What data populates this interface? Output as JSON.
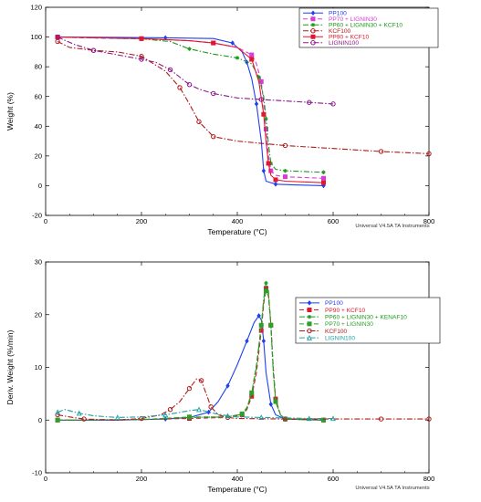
{
  "chart_data": [
    {
      "type": "line",
      "xlabel": "Temperature (°C)",
      "ylabel": "Weight (%)",
      "xlim": [
        0,
        800
      ],
      "ylim": [
        -20,
        120
      ],
      "xticks": [
        0,
        200,
        400,
        600,
        800
      ],
      "yticks": [
        -20,
        0,
        20,
        40,
        60,
        80,
        100,
        120
      ],
      "credit": "Universal V4.5A TA Instruments",
      "legend_position": "top-right",
      "series": [
        {
          "name": "PP100",
          "color": "#1f3ff0",
          "marker": "diamond",
          "dash": "solid",
          "x": [
            25,
            150,
            250,
            350,
            390,
            410,
            420,
            430,
            440,
            450,
            455,
            460,
            480,
            520,
            580
          ],
          "y": [
            100,
            99.8,
            99.5,
            99,
            96,
            90,
            83,
            72,
            55,
            30,
            10,
            3,
            1,
            0.5,
            0
          ]
        },
        {
          "name": "PP70 + LIGNIN30",
          "color": "#d93bd9",
          "marker": "square",
          "dash": "dash",
          "x": [
            25,
            100,
            200,
            300,
            350,
            400,
            430,
            440,
            450,
            455,
            460,
            465,
            470,
            480,
            500,
            580
          ],
          "y": [
            100,
            99.3,
            98.8,
            97.5,
            96,
            93,
            88,
            82,
            70,
            55,
            38,
            20,
            10,
            7,
            6,
            5
          ]
        },
        {
          "name": "PP60 + LIGNIN30 + KCF10",
          "color": "#1a9a1a",
          "marker": "asterisk",
          "dash": "dashdot",
          "x": [
            25,
            100,
            200,
            260,
            300,
            350,
            400,
            430,
            445,
            455,
            460,
            465,
            470,
            480,
            500,
            580
          ],
          "y": [
            100,
            99.5,
            98.8,
            97,
            92,
            88.5,
            86,
            82,
            73,
            60,
            45,
            28,
            15,
            11,
            10,
            9
          ]
        },
        {
          "name": "KCF100",
          "color": "#b01a1a",
          "marker": "circle",
          "dash": "dashdot",
          "x": [
            25,
            50,
            100,
            150,
            200,
            250,
            280,
            300,
            320,
            335,
            350,
            400,
            500,
            600,
            700,
            800
          ],
          "y": [
            97,
            93,
            91,
            90,
            87,
            77,
            66,
            55,
            43,
            38,
            33,
            30,
            27,
            25,
            23,
            21.5
          ]
        },
        {
          "name": "PP90 + KCF10",
          "color": "#e0182e",
          "marker": "square",
          "dash": "solid",
          "x": [
            25,
            100,
            200,
            300,
            350,
            400,
            430,
            445,
            455,
            460,
            465,
            470,
            480,
            500,
            580
          ],
          "y": [
            100,
            99.6,
            99,
            97.5,
            96,
            93,
            85,
            70,
            48,
            30,
            15,
            7,
            4,
            3,
            2
          ]
        },
        {
          "name": "LIGNIN100",
          "color": "#8a1a8a",
          "marker": "circle",
          "dash": "dashdot",
          "x": [
            25,
            60,
            100,
            150,
            200,
            230,
            260,
            280,
            300,
            320,
            350,
            400,
            450,
            500,
            550,
            600
          ],
          "y": [
            100,
            95,
            91,
            88,
            85,
            83,
            78,
            73,
            68,
            65,
            62,
            59,
            58,
            57,
            56,
            55
          ]
        }
      ]
    },
    {
      "type": "line",
      "xlabel": "Temperature (°C)",
      "ylabel": "Deriv. Weight (%/min)",
      "xlim": [
        0,
        800
      ],
      "ylim": [
        -10,
        30
      ],
      "xticks": [
        0,
        200,
        400,
        600,
        800
      ],
      "yticks": [
        -10,
        0,
        10,
        20,
        30
      ],
      "credit": "Universal V4.5A TA Instruments",
      "legend_position": "center-right",
      "series": [
        {
          "name": "PP100",
          "color": "#1f3ff0",
          "marker": "diamond",
          "dash": "solid",
          "x": [
            25,
            150,
            250,
            300,
            340,
            360,
            380,
            400,
            420,
            435,
            445,
            450,
            455,
            460,
            470,
            480,
            500,
            580
          ],
          "y": [
            0,
            0,
            0.2,
            0.5,
            1.5,
            3.5,
            6.5,
            10.5,
            15,
            18.5,
            19.8,
            19,
            15,
            9,
            3,
            1,
            0.2,
            0
          ]
        },
        {
          "name": "PP90 + KCF10",
          "color": "#e0182e",
          "marker": "square",
          "dash": "dash",
          "x": [
            25,
            200,
            300,
            380,
            410,
            420,
            430,
            440,
            450,
            455,
            460,
            465,
            470,
            475,
            480,
            490,
            500,
            580
          ],
          "y": [
            0,
            0.1,
            0.3,
            0.5,
            1,
            2,
            4.5,
            9,
            17,
            22,
            25,
            24,
            18,
            10,
            4,
            1,
            0.2,
            0
          ]
        },
        {
          "name": "PP60 + LIGNIN30 + KENAF10",
          "color": "#1a9a1a",
          "marker": "asterisk",
          "dash": "dashdot",
          "x": [
            25,
            200,
            300,
            380,
            410,
            420,
            430,
            440,
            450,
            455,
            460,
            465,
            470,
            475,
            480,
            490,
            500,
            580
          ],
          "y": [
            0,
            0.1,
            0.5,
            0.6,
            1.1,
            2.2,
            5,
            10,
            18,
            23,
            26,
            24.5,
            18,
            9,
            3.5,
            1,
            0.2,
            0
          ]
        },
        {
          "name": "PP70 + LIGNIN30",
          "color": "#2aa02a",
          "marker": "square",
          "dash": "dash",
          "x": [
            25,
            200,
            300,
            380,
            410,
            420,
            430,
            440,
            450,
            455,
            460,
            465,
            470,
            475,
            480,
            490,
            500,
            580
          ],
          "y": [
            0,
            0.1,
            0.6,
            0.6,
            1.2,
            2.4,
            5.2,
            10.5,
            18,
            22.5,
            24.5,
            23.5,
            18,
            9.5,
            3.5,
            1,
            0.2,
            0
          ]
        },
        {
          "name": "KCF100",
          "color": "#b01a1a",
          "marker": "circle",
          "dash": "dashdot",
          "x": [
            25,
            50,
            80,
            150,
            200,
            240,
            260,
            280,
            300,
            315,
            325,
            335,
            345,
            360,
            380,
            400,
            500,
            600,
            700,
            800
          ],
          "y": [
            1,
            0.6,
            0.2,
            0,
            0.3,
            1,
            2,
            3.5,
            6,
            7.8,
            7.5,
            5,
            2.5,
            1,
            0.5,
            0.3,
            0.2,
            0.2,
            0.2,
            0.2
          ]
        },
        {
          "name": "LIGNIN100",
          "color": "#20a0a0",
          "marker": "triangle",
          "dash": "dashdot",
          "x": [
            25,
            40,
            70,
            100,
            150,
            200,
            250,
            300,
            320,
            350,
            380,
            400,
            450,
            500,
            550,
            600
          ],
          "y": [
            1.5,
            2,
            1.3,
            0.8,
            0.5,
            0.6,
            1,
            1.8,
            2,
            1.3,
            0.8,
            0.6,
            0.5,
            0.4,
            0.3,
            0.3
          ]
        }
      ]
    }
  ]
}
